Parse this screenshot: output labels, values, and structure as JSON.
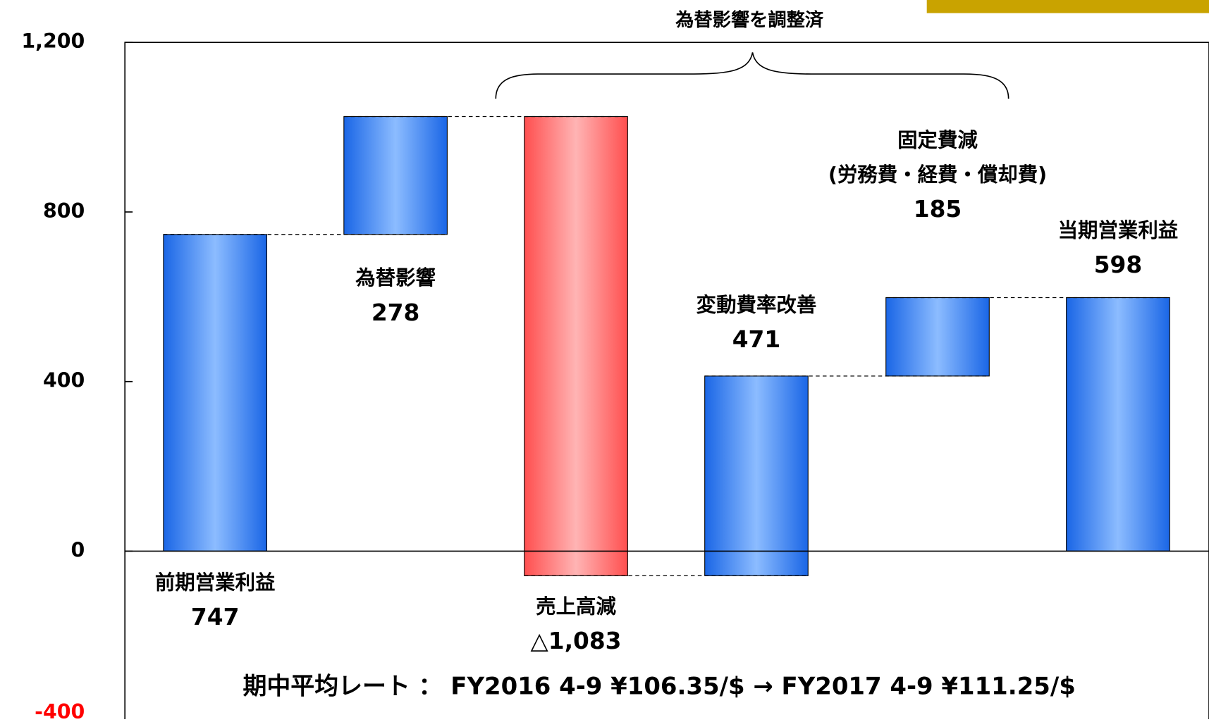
{
  "chart_data": {
    "type": "waterfall",
    "annotation": "為替影響を調整済",
    "footnote": "期中平均レート ： FY2016 4-9 ¥106.35/$ → FY2017 4-9 ¥111.25/$",
    "categories": [
      [
        "前期営業利益"
      ],
      [
        "為替影響"
      ],
      [
        "売上高減"
      ],
      [
        "変動費率改善"
      ],
      [
        "固定費減",
        "(労務費・経費・償却費)"
      ],
      [
        "当期営業利益"
      ]
    ],
    "measure": [
      "absolute",
      "relative",
      "relative",
      "relative",
      "relative",
      "total"
    ],
    "values": [
      747,
      278,
      -1083,
      471,
      185,
      598
    ],
    "value_labels": [
      "747",
      "278",
      "△1,083",
      "471",
      "185",
      "598"
    ],
    "colors": [
      "blue",
      "blue",
      "red",
      "blue",
      "blue",
      "blue"
    ],
    "ylim": [
      -400,
      1200
    ],
    "yticks": [
      {
        "value": -400,
        "label": "-400"
      },
      {
        "value": 0,
        "label": "0"
      },
      {
        "value": 400,
        "label": "400"
      },
      {
        "value": 800,
        "label": "800"
      },
      {
        "value": 1200,
        "label": "1,200"
      }
    ]
  }
}
